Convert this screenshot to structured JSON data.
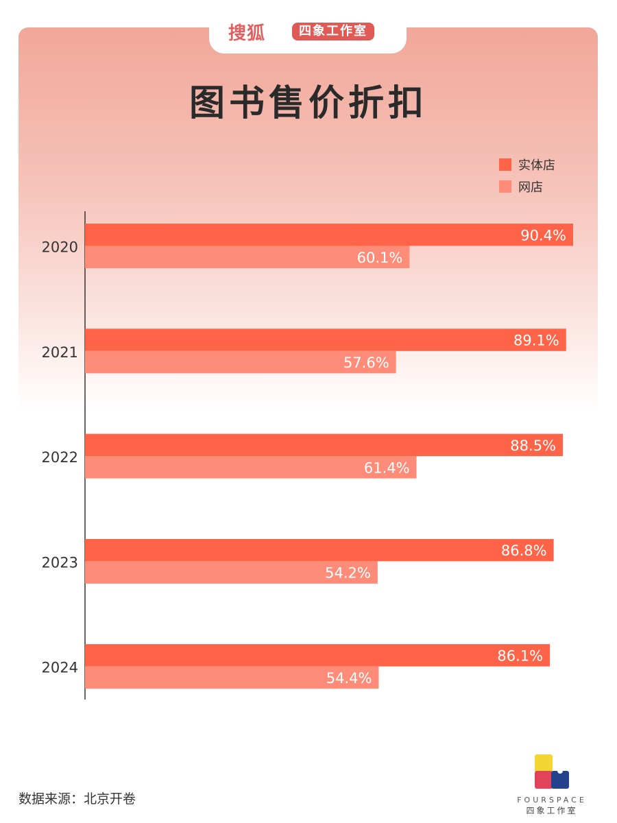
{
  "header": {
    "brand": "搜狐",
    "studio": "四象工作室"
  },
  "chart_data": {
    "type": "bar",
    "orientation": "horizontal",
    "title": "图书售价折扣",
    "categories": [
      "2020",
      "2021",
      "2022",
      "2023",
      "2024"
    ],
    "series": [
      {
        "name": "实体店",
        "values": [
          90.4,
          89.1,
          88.5,
          86.8,
          86.1
        ],
        "labels": [
          "90.4%",
          "89.1%",
          "88.5%",
          "86.8%",
          "86.1%"
        ],
        "color": "#FF6448"
      },
      {
        "name": "网店",
        "values": [
          60.1,
          57.6,
          61.4,
          54.2,
          54.4
        ],
        "labels": [
          "60.1%",
          "57.6%",
          "61.4%",
          "54.2%",
          "54.4%"
        ],
        "color": "#FF8C79"
      }
    ],
    "xlim": [
      0,
      100
    ],
    "legend": "top-right",
    "grid": false
  },
  "footer": {
    "source": "数据来源：北京开卷",
    "logo_en": "FOURSPACE",
    "logo_cn": "四象工作室"
  }
}
